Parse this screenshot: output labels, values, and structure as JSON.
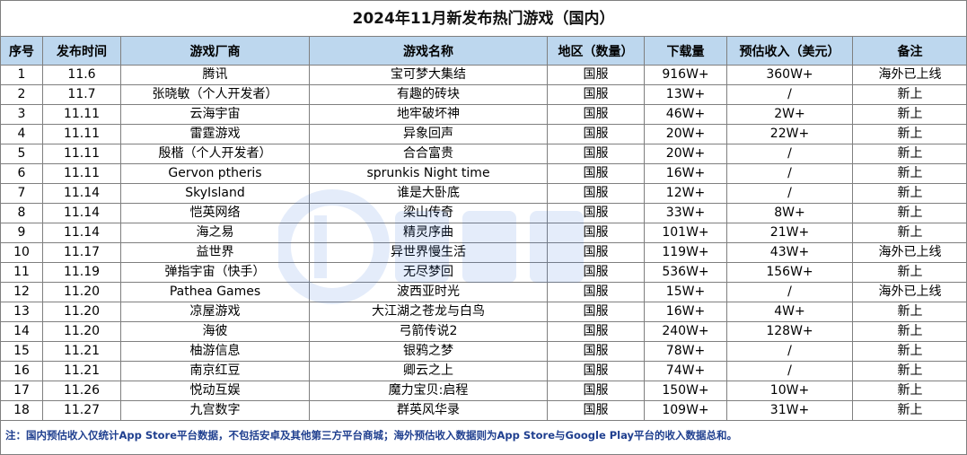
{
  "title": "2024年11月新发布热门游戏（国内）",
  "headers": [
    "序号",
    "发布时间",
    "游戏厂商",
    "游戏名称",
    "地区（数量）",
    "下载量",
    "预估收入（美元）",
    "备注"
  ],
  "rows": [
    [
      "1",
      "11.6",
      "腾讯",
      "宝可梦大集结",
      "国服",
      "916W+",
      "360W+",
      "海外已上线"
    ],
    [
      "2",
      "11.7",
      "张晓敏（个人开发者）",
      "有趣的砖块",
      "国服",
      "13W+",
      "/",
      "新上"
    ],
    [
      "3",
      "11.11",
      "云海宇宙",
      "地牢破坏神",
      "国服",
      "46W+",
      "2W+",
      "新上"
    ],
    [
      "4",
      "11.11",
      "雷霆游戏",
      "异象回声",
      "国服",
      "20W+",
      "22W+",
      "新上"
    ],
    [
      "5",
      "11.11",
      "殷楷（个人开发者）",
      "合合富贵",
      "国服",
      "20W+",
      "/",
      "新上"
    ],
    [
      "6",
      "11.11",
      "Gervon ptheris",
      "sprunkis Night time",
      "国服",
      "16W+",
      "/",
      "新上"
    ],
    [
      "7",
      "11.14",
      "SkyIsland",
      "谁是大卧底",
      "国服",
      "12W+",
      "/",
      "新上"
    ],
    [
      "8",
      "11.14",
      "恺英网络",
      "梁山传奇",
      "国服",
      "33W+",
      "8W+",
      "新上"
    ],
    [
      "9",
      "11.14",
      "海之易",
      "精灵序曲",
      "国服",
      "101W+",
      "21W+",
      "新上"
    ],
    [
      "10",
      "11.17",
      "益世界",
      "异世界慢生活",
      "国服",
      "119W+",
      "43W+",
      "海外已上线"
    ],
    [
      "11",
      "11.19",
      "弹指宇宙（快手）",
      "无尽梦回",
      "国服",
      "536W+",
      "156W+",
      "新上"
    ],
    [
      "12",
      "11.20",
      "Pathea Games",
      "波西亚时光",
      "国服",
      "15W+",
      "/",
      "海外已上线"
    ],
    [
      "13",
      "11.20",
      "凉屋游戏",
      "大江湖之苍龙与白鸟",
      "国服",
      "16W+",
      "4W+",
      "新上"
    ],
    [
      "14",
      "11.20",
      "海彼",
      "弓箭传说2",
      "国服",
      "240W+",
      "128W+",
      "新上"
    ],
    [
      "15",
      "11.21",
      "柚游信息",
      "银鸦之梦",
      "国服",
      "78W+",
      "/",
      "新上"
    ],
    [
      "16",
      "11.21",
      "南京红豆",
      "卿云之上",
      "国服",
      "74W+",
      "/",
      "新上"
    ],
    [
      "17",
      "11.26",
      "悦动互娱",
      "魔力宝贝:启程",
      "国服",
      "150W+",
      "10W+",
      "新上"
    ],
    [
      "18",
      "11.27",
      "九宫数字",
      "群英风华录",
      "国服",
      "109W+",
      "31W+",
      "新上"
    ]
  ],
  "note": "注：国内预估收入仅统计App Store平台数据，不包括安卓及其他第三方平台商城；海外预估收入数据则为App Store与Google Play平台的收入数据总和。",
  "colors": {
    "header_bg": "#bdd7ee",
    "border": "#7f7f7f",
    "note_text": "#1f3f8f"
  }
}
